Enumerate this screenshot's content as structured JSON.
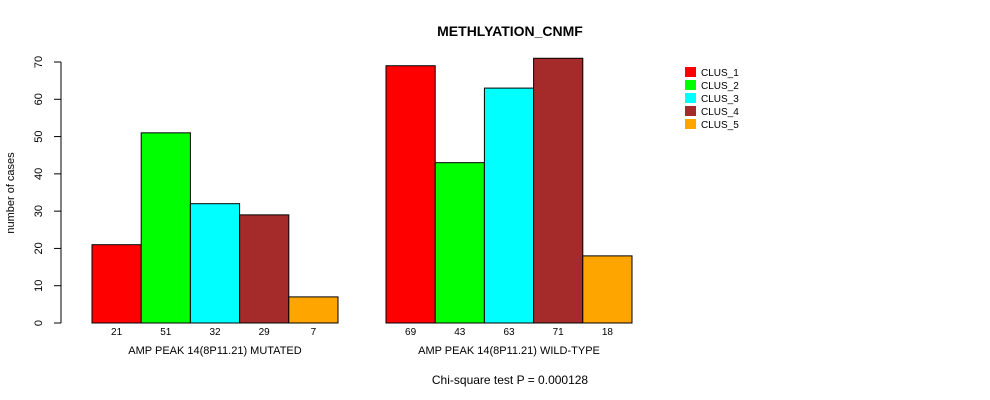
{
  "chart_data": {
    "type": "bar",
    "title": "METHLYATION_CNMF",
    "ylabel": "number of cases",
    "xlabel": "",
    "ylim": [
      0,
      70
    ],
    "yticks": [
      0,
      10,
      20,
      30,
      40,
      50,
      60,
      70
    ],
    "categories": [
      "AMP PEAK 14(8P11.21) MUTATED",
      "AMP PEAK 14(8P11.21) WILD-TYPE"
    ],
    "series": [
      {
        "name": "CLUS_1",
        "color": "#ff0000",
        "values": [
          21,
          69
        ]
      },
      {
        "name": "CLUS_2",
        "color": "#00ff00",
        "values": [
          51,
          43
        ]
      },
      {
        "name": "CLUS_3",
        "color": "#00ffff",
        "values": [
          32,
          63
        ]
      },
      {
        "name": "CLUS_4",
        "color": "#a52a2a",
        "values": [
          29,
          71
        ]
      },
      {
        "name": "CLUS_5",
        "color": "#ffa500",
        "values": [
          7,
          18
        ]
      }
    ],
    "legend_position": "top-right",
    "footnote": "Chi-square test P = 0.000128"
  }
}
